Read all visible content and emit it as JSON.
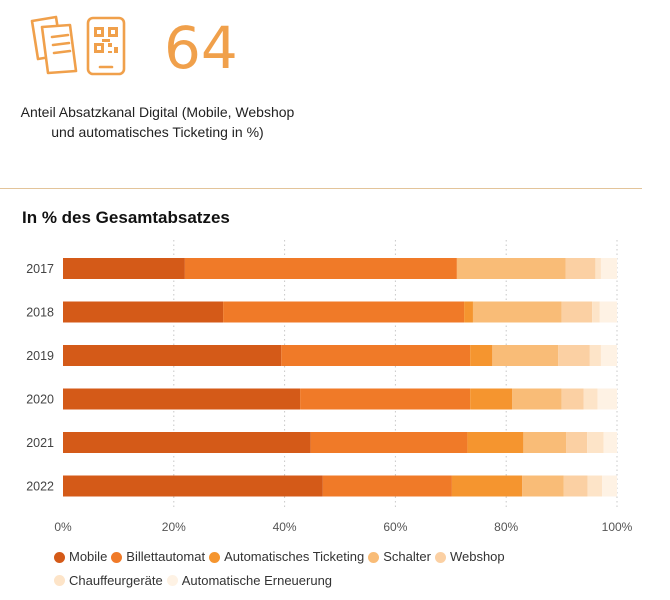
{
  "kpi": {
    "value": "64",
    "description_line1": "Anteil Absatzkanal Digital (Mobile, Webshop",
    "description_line2": "und automatisches Ticketing in %)",
    "icon": "tickets-and-qr-phone-icon",
    "color": "#f0a04b"
  },
  "chart_data": {
    "type": "bar",
    "orientation": "horizontal",
    "stacked": true,
    "title": "In % des Gesamtabsatzes",
    "categories": [
      "2017",
      "2018",
      "2019",
      "2020",
      "2021",
      "2022"
    ],
    "xlim": [
      0,
      100
    ],
    "xticks": [
      "0%",
      "20%",
      "40%",
      "60%",
      "80%",
      "100%"
    ],
    "grid": "vertical-dotted",
    "legend_position": "bottom",
    "series": [
      {
        "name": "Mobile",
        "color": "#d45a18",
        "values": [
          22.0,
          28.9,
          39.4,
          42.8,
          44.7,
          46.9
        ]
      },
      {
        "name": "Billettautomat",
        "color": "#f07a28",
        "values": [
          49.1,
          43.5,
          34.1,
          30.7,
          28.3,
          23.3
        ]
      },
      {
        "name": "Automatisches Ticketing",
        "color": "#f5952f",
        "values": [
          0.0,
          1.6,
          4.0,
          7.6,
          10.1,
          12.7
        ]
      },
      {
        "name": "Schalter",
        "color": "#f9bc77",
        "values": [
          19.6,
          16.0,
          11.9,
          8.9,
          7.7,
          7.5
        ]
      },
      {
        "name": "Webshop",
        "color": "#fbd0a3",
        "values": [
          5.4,
          5.5,
          5.7,
          4.0,
          3.8,
          4.3
        ]
      },
      {
        "name": "Chauffeurgeräte",
        "color": "#fde4c8",
        "values": [
          1.0,
          1.4,
          2.0,
          2.5,
          3.0,
          2.6
        ]
      },
      {
        "name": "Automatische Erneuerung",
        "color": "#fef2e4",
        "values": [
          2.9,
          3.1,
          2.9,
          3.5,
          2.4,
          2.7
        ]
      }
    ]
  }
}
